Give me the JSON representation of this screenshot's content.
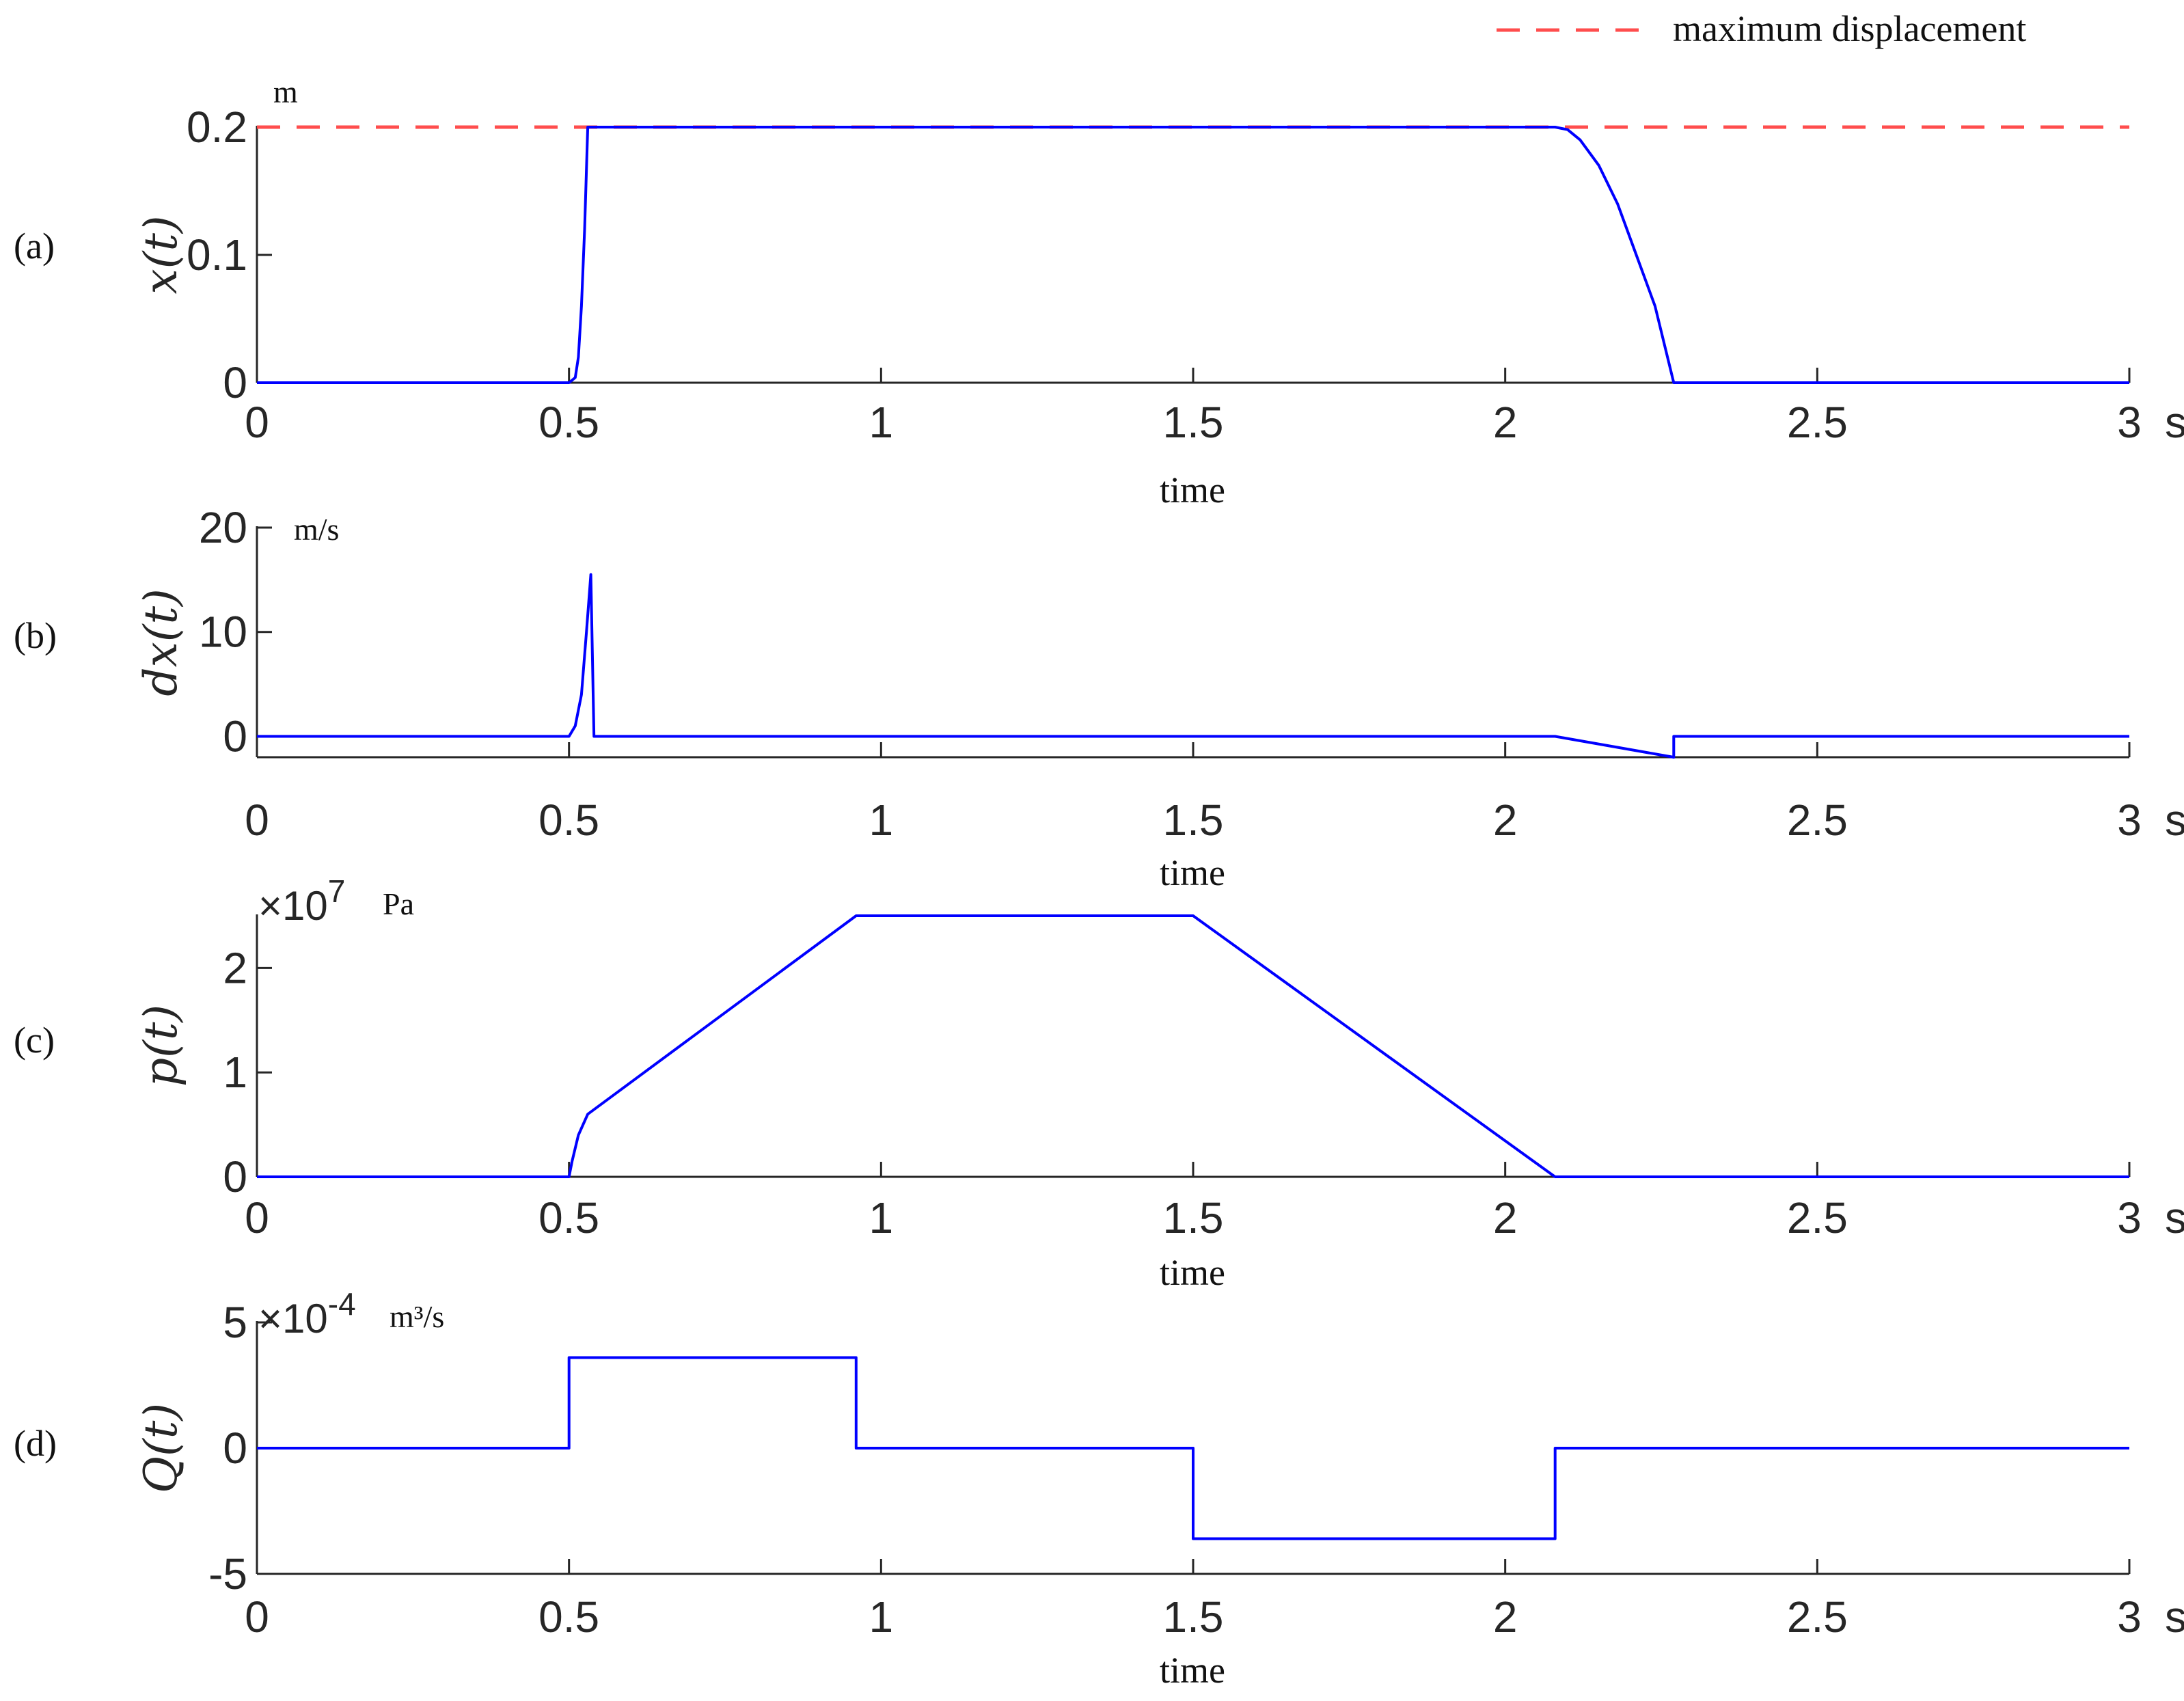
{
  "legend": {
    "label": "maximum displacement",
    "color": "#ff4d4d"
  },
  "colors": {
    "series": "#0000ff",
    "axis": "#262626",
    "reference": "#ff4d4d"
  },
  "chart_data": [
    {
      "type": "line",
      "panel_label": "(a)",
      "ylabel": "x(t)",
      "unit": "m",
      "xlabel": "time",
      "x_unit": "s",
      "xlim": [
        0,
        3
      ],
      "ylim": [
        0,
        0.2
      ],
      "yticks": [
        "0",
        "0.1",
        "0.2"
      ],
      "xticks": [
        "0",
        "0.5",
        "1",
        "1.5",
        "2",
        "2.5",
        "3"
      ],
      "series": [
        {
          "values": [
            [
              0,
              0
            ],
            [
              0.5,
              0
            ],
            [
              0.51,
              0.004
            ],
            [
              0.515,
              0.02
            ],
            [
              0.52,
              0.06
            ],
            [
              0.525,
              0.12
            ],
            [
              0.53,
              0.2
            ],
            [
              2.08,
              0.2
            ],
            [
              2.1,
              0.198
            ],
            [
              2.12,
              0.19
            ],
            [
              2.15,
              0.17
            ],
            [
              2.18,
              0.14
            ],
            [
              2.21,
              0.1
            ],
            [
              2.24,
              0.06
            ],
            [
              2.27,
              0.0
            ],
            [
              3,
              0
            ]
          ]
        }
      ],
      "reference_line": {
        "y": 0.2,
        "name": "maximum displacement"
      }
    },
    {
      "type": "line",
      "panel_label": "(b)",
      "ylabel": "dx(t)",
      "unit": "m/s",
      "xlabel": "time",
      "x_unit": "s",
      "xlim": [
        0,
        3
      ],
      "ylim": [
        -2,
        20
      ],
      "yticks": [
        "0",
        "10",
        "20"
      ],
      "xticks": [
        "0",
        "0.5",
        "1",
        "1.5",
        "2",
        "2.5",
        "3"
      ],
      "series": [
        {
          "values": [
            [
              0,
              0
            ],
            [
              0.5,
              0
            ],
            [
              0.51,
              1
            ],
            [
              0.52,
              4
            ],
            [
              0.528,
              10
            ],
            [
              0.535,
              15.5
            ],
            [
              0.54,
              0
            ],
            [
              2.08,
              0
            ],
            [
              2.27,
              -2
            ],
            [
              2.27,
              0
            ],
            [
              3,
              0
            ]
          ]
        }
      ]
    },
    {
      "type": "line",
      "panel_label": "(c)",
      "ylabel": "p(t)",
      "unit": "Pa",
      "scale": "×10",
      "scale_exp": "7",
      "xlabel": "time",
      "x_unit": "s",
      "xlim": [
        0,
        3
      ],
      "ylim": [
        0,
        2.5
      ],
      "yticks": [
        "0",
        "1",
        "2"
      ],
      "xticks": [
        "0",
        "0.5",
        "1",
        "1.5",
        "2",
        "2.5",
        "3"
      ],
      "series": [
        {
          "values": [
            [
              0,
              0
            ],
            [
              0.5,
              0
            ],
            [
              0.505,
              0.15
            ],
            [
              0.515,
              0.4
            ],
            [
              0.53,
              0.6
            ],
            [
              0.96,
              2.5
            ],
            [
              1.5,
              2.5
            ],
            [
              2.08,
              0
            ],
            [
              3,
              0
            ]
          ]
        }
      ]
    },
    {
      "type": "line",
      "panel_label": "(d)",
      "ylabel": "Q(t)",
      "unit": "m³/s",
      "scale": "×10",
      "scale_exp": "-4",
      "xlabel": "time",
      "x_unit": "s",
      "xlim": [
        0,
        3
      ],
      "ylim": [
        -5,
        5
      ],
      "yticks": [
        "-5",
        "0",
        "5"
      ],
      "xticks": [
        "0",
        "0.5",
        "1",
        "1.5",
        "2",
        "2.5",
        "3"
      ],
      "series": [
        {
          "values": [
            [
              0,
              0
            ],
            [
              0.5,
              0
            ],
            [
              0.5,
              3.6
            ],
            [
              0.96,
              3.6
            ],
            [
              0.96,
              0
            ],
            [
              1.5,
              0
            ],
            [
              1.5,
              -3.6
            ],
            [
              2.08,
              -3.6
            ],
            [
              2.08,
              0
            ],
            [
              3,
              0
            ]
          ]
        }
      ]
    }
  ]
}
